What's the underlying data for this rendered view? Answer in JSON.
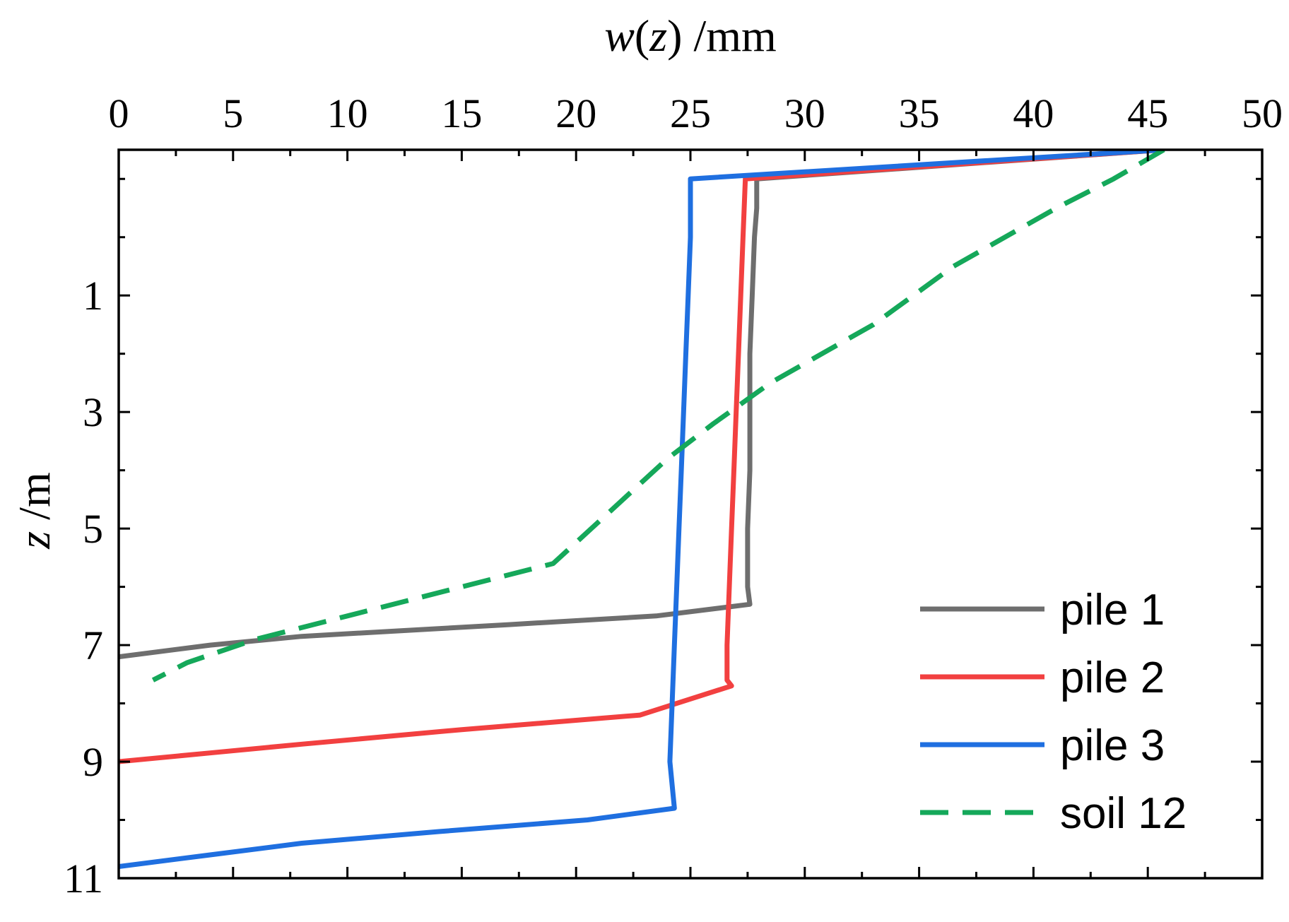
{
  "chart_data": {
    "type": "line",
    "title": "",
    "xlabel_var": "w",
    "xlabel_open": "(",
    "xlabel_arg": "z",
    "xlabel_close": ")",
    "xlabel_unit": " /mm",
    "ylabel_var": "z",
    "ylabel_unit": " /m",
    "xlim": [
      0,
      50
    ],
    "ylim": [
      -1.5,
      11
    ],
    "x_axis_position": "top",
    "y_axis_inverted": true,
    "xticks": [
      0,
      5,
      10,
      15,
      20,
      25,
      30,
      35,
      40,
      45,
      50
    ],
    "xtick_labels": [
      "0",
      "5",
      "10",
      "15",
      "20",
      "25",
      "30",
      "35",
      "40",
      "45",
      "50"
    ],
    "yticks": [
      1,
      3,
      5,
      7,
      9,
      11
    ],
    "ytick_labels": [
      "1",
      "3",
      "5",
      "7",
      "9",
      "11"
    ],
    "legend_position": "bottom-right",
    "series": [
      {
        "name": "pile 1",
        "color": "#6e6e6e",
        "dash": "solid",
        "points": [
          [
            45.7,
            -1.5
          ],
          [
            27.9,
            -1.0
          ],
          [
            27.9,
            -0.5
          ],
          [
            27.8,
            0.0
          ],
          [
            27.7,
            1.0
          ],
          [
            27.6,
            2.0
          ],
          [
            27.6,
            3.0
          ],
          [
            27.6,
            4.0
          ],
          [
            27.5,
            5.0
          ],
          [
            27.5,
            6.0
          ],
          [
            27.6,
            6.3
          ],
          [
            23.5,
            6.5
          ],
          [
            17.0,
            6.65
          ],
          [
            8.0,
            6.85
          ],
          [
            4.0,
            7.0
          ],
          [
            0.0,
            7.2
          ]
        ]
      },
      {
        "name": "pile 2",
        "color": "#f24040",
        "dash": "solid",
        "points": [
          [
            45.7,
            -1.5
          ],
          [
            27.4,
            -1.0
          ],
          [
            27.3,
            0.0
          ],
          [
            27.2,
            1.0
          ],
          [
            27.1,
            2.0
          ],
          [
            27.0,
            3.0
          ],
          [
            26.9,
            4.0
          ],
          [
            26.8,
            5.0
          ],
          [
            26.7,
            6.0
          ],
          [
            26.6,
            7.0
          ],
          [
            26.6,
            7.6
          ],
          [
            26.8,
            7.7
          ],
          [
            22.8,
            8.2
          ],
          [
            15.0,
            8.45
          ],
          [
            8.0,
            8.7
          ],
          [
            4.0,
            8.85
          ],
          [
            0.0,
            9.0
          ]
        ]
      },
      {
        "name": "pile 3",
        "color": "#1f6fe0",
        "dash": "solid",
        "points": [
          [
            45.7,
            -1.5
          ],
          [
            25.0,
            -1.0
          ],
          [
            25.0,
            0.0
          ],
          [
            24.9,
            1.0
          ],
          [
            24.8,
            2.0
          ],
          [
            24.7,
            3.0
          ],
          [
            24.6,
            4.0
          ],
          [
            24.5,
            5.0
          ],
          [
            24.4,
            6.0
          ],
          [
            24.3,
            7.0
          ],
          [
            24.2,
            8.0
          ],
          [
            24.1,
            9.0
          ],
          [
            24.3,
            9.8
          ],
          [
            20.5,
            10.0
          ],
          [
            14.0,
            10.2
          ],
          [
            8.0,
            10.4
          ],
          [
            4.0,
            10.6
          ],
          [
            0.0,
            10.8
          ]
        ]
      },
      {
        "name": "soil 12",
        "color": "#15a85a",
        "dash": "dashed",
        "points": [
          [
            45.7,
            -1.5
          ],
          [
            43.5,
            -1.0
          ],
          [
            41.0,
            -0.5
          ],
          [
            36.5,
            0.5
          ],
          [
            33.0,
            1.5
          ],
          [
            28.5,
            2.5
          ],
          [
            26.0,
            3.2
          ],
          [
            24.0,
            3.8
          ],
          [
            21.5,
            4.7
          ],
          [
            19.0,
            5.6
          ],
          [
            15.0,
            6.0
          ],
          [
            10.0,
            6.5
          ],
          [
            6.0,
            6.9
          ],
          [
            3.0,
            7.3
          ],
          [
            1.5,
            7.6
          ]
        ]
      }
    ]
  }
}
